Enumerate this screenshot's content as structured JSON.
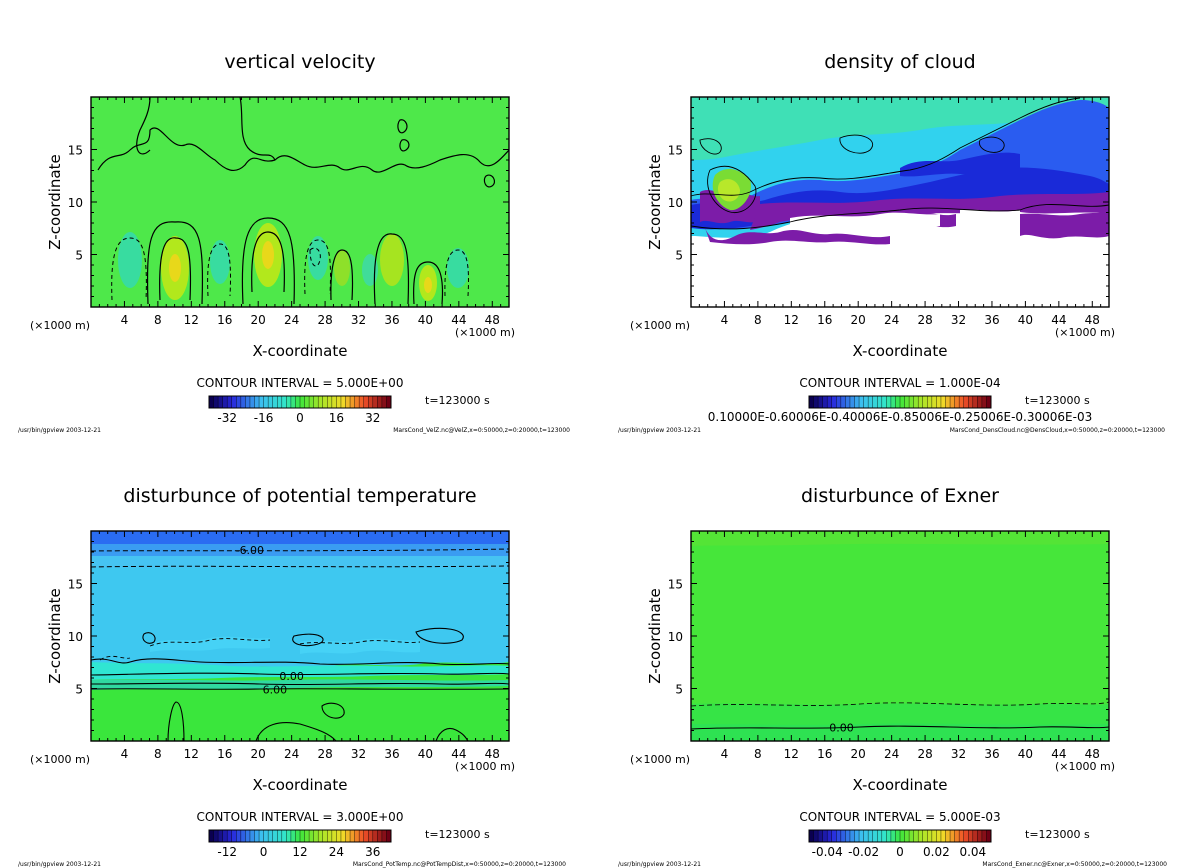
{
  "colors": {
    "field_green": "#3ce63c",
    "cloud_purple": "#7c1ca8",
    "cloud_blue": "#2a5cf0",
    "light_blue": "#44c8f0",
    "cyan": "#30e6d2",
    "navy": "#1a2ad8"
  },
  "chart_data": [
    {
      "type": "heatmap",
      "title": "vertical velocity",
      "xlabel": "X-coordinate",
      "ylabel": "Z-coordinate",
      "x_unit": "(×1000 m)",
      "xlim": [
        0,
        50
      ],
      "ylim": [
        0,
        20
      ],
      "xticks": [
        4,
        8,
        12,
        16,
        20,
        24,
        28,
        32,
        36,
        40,
        44,
        48
      ],
      "yticks": [
        5,
        10,
        15
      ],
      "contour_interval": "CONTOUR INTERVAL = 5.000E+00",
      "colorbar_ticks": [
        "-32",
        "-16",
        "0",
        "16",
        "32"
      ],
      "colorbar_range": [
        -40,
        40
      ],
      "time": "t=123000 s",
      "footer_left": "/usr/bin/gpview  2003-12-21",
      "footer_right": "MarsCond_VelZ.nc@VelZ,x=0:50000,z=0:20000,t=123000",
      "contour_labels": []
    },
    {
      "type": "heatmap",
      "title": "density of cloud",
      "xlabel": "X-coordinate",
      "ylabel": "Z-coordinate",
      "x_unit": "(×1000 m)",
      "xlim": [
        0,
        50
      ],
      "ylim": [
        0,
        20
      ],
      "xticks": [
        4,
        8,
        12,
        16,
        20,
        24,
        28,
        32,
        36,
        40,
        44,
        48
      ],
      "yticks": [
        5,
        10,
        15
      ],
      "contour_interval": "CONTOUR INTERVAL = 1.000E-04",
      "colorbar_ticks": [
        "0.10000E-0.60006E-0.40006E-0.85006E-0.25006E-0.30006E-03"
      ],
      "colorbar_range": [
        0,
        0.0014
      ],
      "time": "t=123000 s",
      "footer_left": "/usr/bin/gpview  2003-12-21",
      "footer_right": "MarsCond_DensCloud.nc@DensCloud,x=0:50000,z=0:20000,t=123000",
      "contour_labels": []
    },
    {
      "type": "heatmap",
      "title": "disturbunce of potential temperature",
      "xlabel": "X-coordinate",
      "ylabel": "Z-coordinate",
      "x_unit": "(×1000 m)",
      "xlim": [
        0,
        50
      ],
      "ylim": [
        0,
        20
      ],
      "xticks": [
        4,
        8,
        12,
        16,
        20,
        24,
        28,
        32,
        36,
        40,
        44,
        48
      ],
      "yticks": [
        5,
        10,
        15
      ],
      "contour_interval": "CONTOUR INTERVAL = 3.000E+00",
      "colorbar_ticks": [
        "-12",
        "0",
        "12",
        "24",
        "36"
      ],
      "colorbar_range": [
        -18,
        42
      ],
      "time": "t=123000 s",
      "footer_left": "/usr/bin/gpview  2003-12-21",
      "footer_right": "MarsCond_PotTemp.nc@PotTempDist,x=0:50000,z=0:20000,t=123000",
      "contour_labels": [
        {
          "text": "-6.00",
          "x": 19,
          "z": 18.2
        },
        {
          "text": "0.00",
          "x": 24,
          "z": 6.2
        },
        {
          "text": "6.00",
          "x": 22,
          "z": 4.9
        }
      ]
    },
    {
      "type": "heatmap",
      "title": "disturbunce of Exner",
      "xlabel": "X-coordinate",
      "ylabel": "Z-coordinate",
      "x_unit": "(×1000 m)",
      "xlim": [
        0,
        50
      ],
      "ylim": [
        0,
        20
      ],
      "xticks": [
        4,
        8,
        12,
        16,
        20,
        24,
        28,
        32,
        36,
        40,
        44,
        48
      ],
      "yticks": [
        5,
        10,
        15
      ],
      "contour_interval": "CONTOUR INTERVAL = 5.000E-03",
      "colorbar_ticks": [
        "-0.04",
        "-0.02",
        "0",
        "0.02",
        "0.04"
      ],
      "colorbar_range": [
        -0.05,
        0.05
      ],
      "time": "t=123000 s",
      "footer_left": "/usr/bin/gpview  2003-12-21",
      "footer_right": "MarsCond_Exner.nc@Exner,x=0:50000,z=0:20000,t=123000",
      "contour_labels": [
        {
          "text": "0.00",
          "x": 18,
          "z": 1.3
        }
      ]
    }
  ]
}
